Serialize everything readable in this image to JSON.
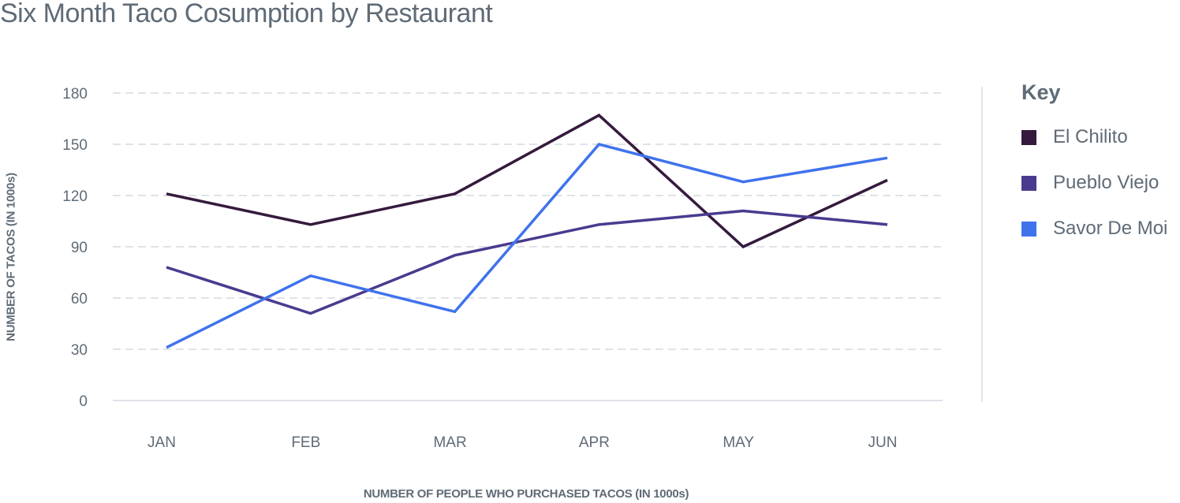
{
  "title": "Six Month Taco Cosumption by Restaurant",
  "axes": {
    "ylabel": "NUMBER OF TACOS (IN 1000s)",
    "xlabel": "NUMBER OF PEOPLE WHO PURCHASED TACOS (IN 1000s)",
    "yticks": [
      "0",
      "30",
      "60",
      "90",
      "120",
      "150",
      "180"
    ],
    "xticks": [
      "JAN",
      "FEB",
      "MAR",
      "APR",
      "MAY",
      "JUN"
    ]
  },
  "legend": {
    "title": "Key",
    "items": [
      {
        "label": "El Chilito",
        "color": "#351a3d"
      },
      {
        "label": "Pueblo Viejo",
        "color": "#4a3a8f"
      },
      {
        "label": "Savor De Moi",
        "color": "#3f73ec"
      }
    ]
  },
  "chart_data": {
    "type": "line",
    "title": "Six Month Taco Cosumption by Restaurant",
    "xlabel": "NUMBER OF PEOPLE WHO PURCHASED TACOS (IN 1000s)",
    "ylabel": "NUMBER OF TACOS (IN 1000s)",
    "categories": [
      "JAN",
      "FEB",
      "MAR",
      "APR",
      "MAY",
      "JUN"
    ],
    "ylim": [
      0,
      180
    ],
    "yticks": [
      0,
      30,
      60,
      90,
      120,
      150,
      180
    ],
    "grid": "horizontal dashed",
    "legend_position": "right",
    "series": [
      {
        "name": "El Chilito",
        "color": "#351a3d",
        "values": [
          121,
          103,
          121,
          167,
          90,
          129
        ]
      },
      {
        "name": "Pueblo Viejo",
        "color": "#4a3a8f",
        "values": [
          78,
          51,
          85,
          103,
          111,
          103
        ]
      },
      {
        "name": "Savor De Moi",
        "color": "#3f73ec",
        "values": [
          31,
          73,
          52,
          150,
          128,
          142
        ]
      }
    ]
  }
}
